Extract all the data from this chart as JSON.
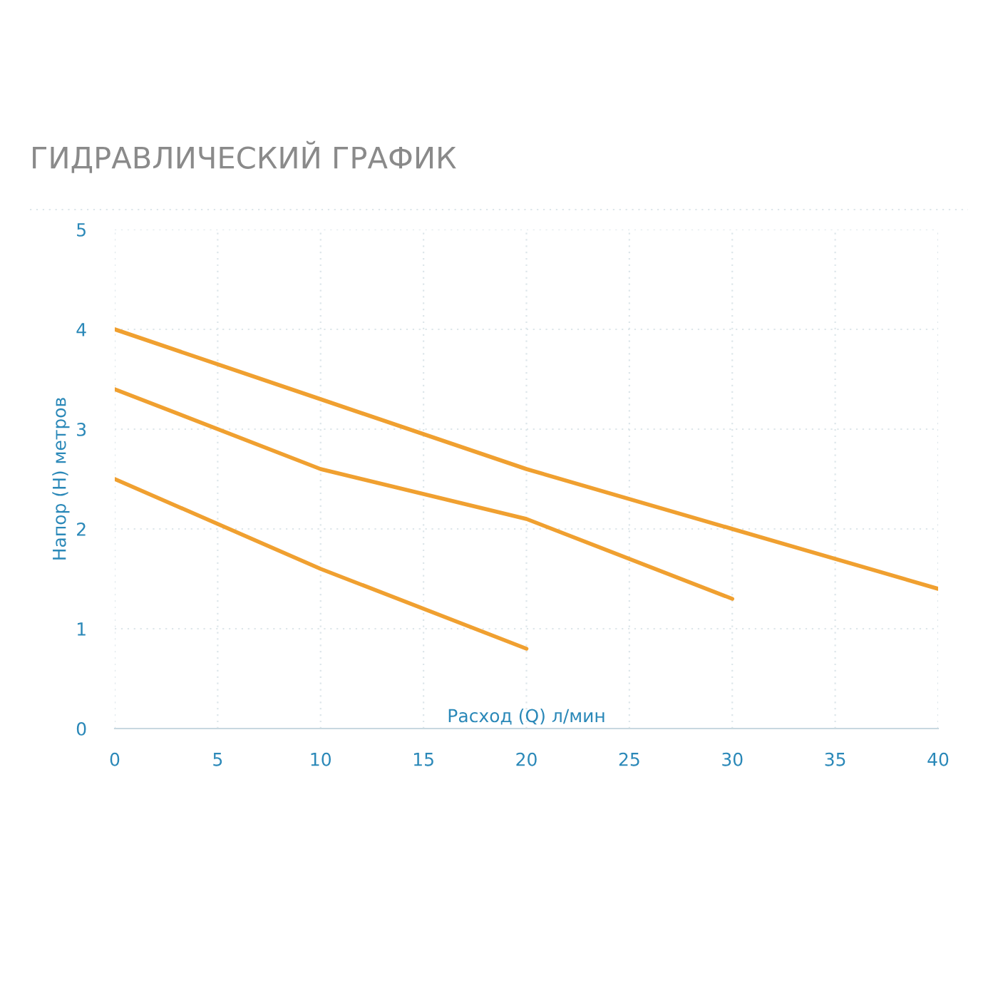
{
  "chart_data": {
    "type": "line",
    "title": "ГИДРАВЛИЧЕСКИЙ ГРАФИК",
    "xlabel": "Расход (Q) л/мин",
    "ylabel": "Напор (H) метров",
    "series": [
      {
        "color": "#f0a030",
        "x": [
          0,
          10,
          20,
          30,
          40
        ],
        "values": [
          4.0,
          3.3,
          2.6,
          2.0,
          1.4
        ]
      },
      {
        "color": "#f0a030",
        "x": [
          0,
          10,
          20,
          30
        ],
        "values": [
          3.4,
          2.6,
          2.1,
          1.3
        ]
      },
      {
        "color": "#f0a030",
        "x": [
          0,
          10,
          20
        ],
        "values": [
          2.5,
          1.6,
          0.8
        ]
      }
    ],
    "xlim": [
      0,
      40
    ],
    "xticks": [
      0,
      5,
      10,
      15,
      20,
      25,
      30,
      35,
      40
    ],
    "ylim": [
      0,
      5
    ],
    "yticks": [
      0,
      1,
      2,
      3,
      4,
      5
    ],
    "grid": true,
    "marker": "none",
    "line_style": "solid"
  }
}
